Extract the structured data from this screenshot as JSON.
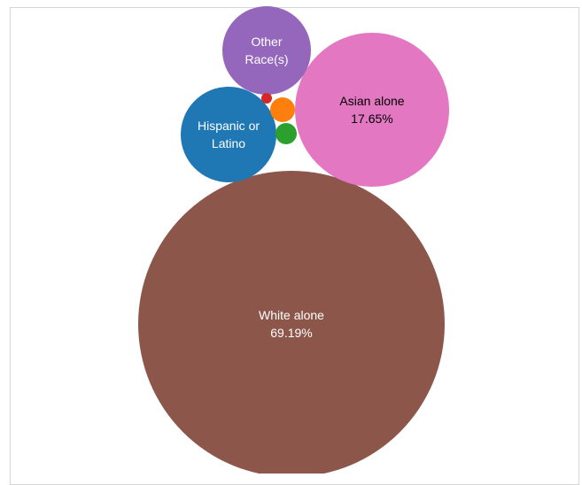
{
  "chart_data": {
    "type": "bubble",
    "title": "",
    "series": [
      {
        "name": "White alone",
        "value": 69.19,
        "label_lines": [
          "White alone",
          "69.19%"
        ],
        "color": "#8c564b",
        "label_color": "#ffffff"
      },
      {
        "name": "Asian alone",
        "value": 17.65,
        "label_lines": [
          "Asian alone",
          "17.65%"
        ],
        "color": "#e377c2",
        "label_color": "#000000"
      },
      {
        "name": "Hispanic or Latino",
        "label_lines": [
          "Hispanic or",
          "Latino"
        ],
        "color": "#1f77b4",
        "label_color": "#ffffff"
      },
      {
        "name": "Other Race(s)",
        "label_lines": [
          "Other",
          "Race(s)"
        ],
        "color": "#9467bd",
        "label_color": "#ffffff"
      },
      {
        "name": "",
        "label_lines": [],
        "color": "#ff7f0e",
        "label_color": "#ffffff"
      },
      {
        "name": "",
        "label_lines": [],
        "color": "#2ca02c",
        "label_color": "#ffffff"
      },
      {
        "name": "",
        "label_lines": [],
        "color": "#d62728",
        "label_color": "#ffffff"
      }
    ]
  }
}
